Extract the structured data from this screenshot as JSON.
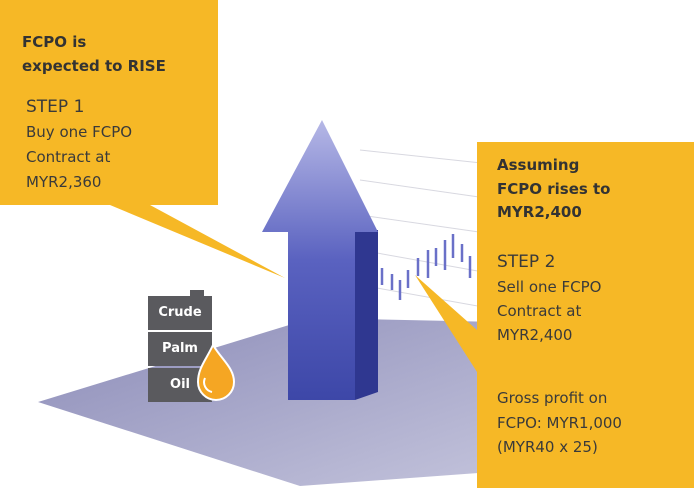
{
  "left_callout": {
    "heading": [
      "FCPO is",
      "expected to RISE"
    ],
    "step": "STEP 1",
    "body": [
      "Buy one FCPO",
      "Contract at",
      "MYR2,360"
    ]
  },
  "right_callout": {
    "heading": [
      "Assuming",
      "FCPO rises to",
      "MYR2,400"
    ],
    "step": "STEP 2",
    "body": [
      "Sell one FCPO",
      "Contract at",
      "MYR2,400"
    ],
    "profit": [
      "Gross profit on",
      "FCPO: MYR1,000",
      "(MYR40 x 25)"
    ]
  },
  "barrel": {
    "labels": [
      "Crude",
      "Palm",
      "Oil"
    ]
  }
}
